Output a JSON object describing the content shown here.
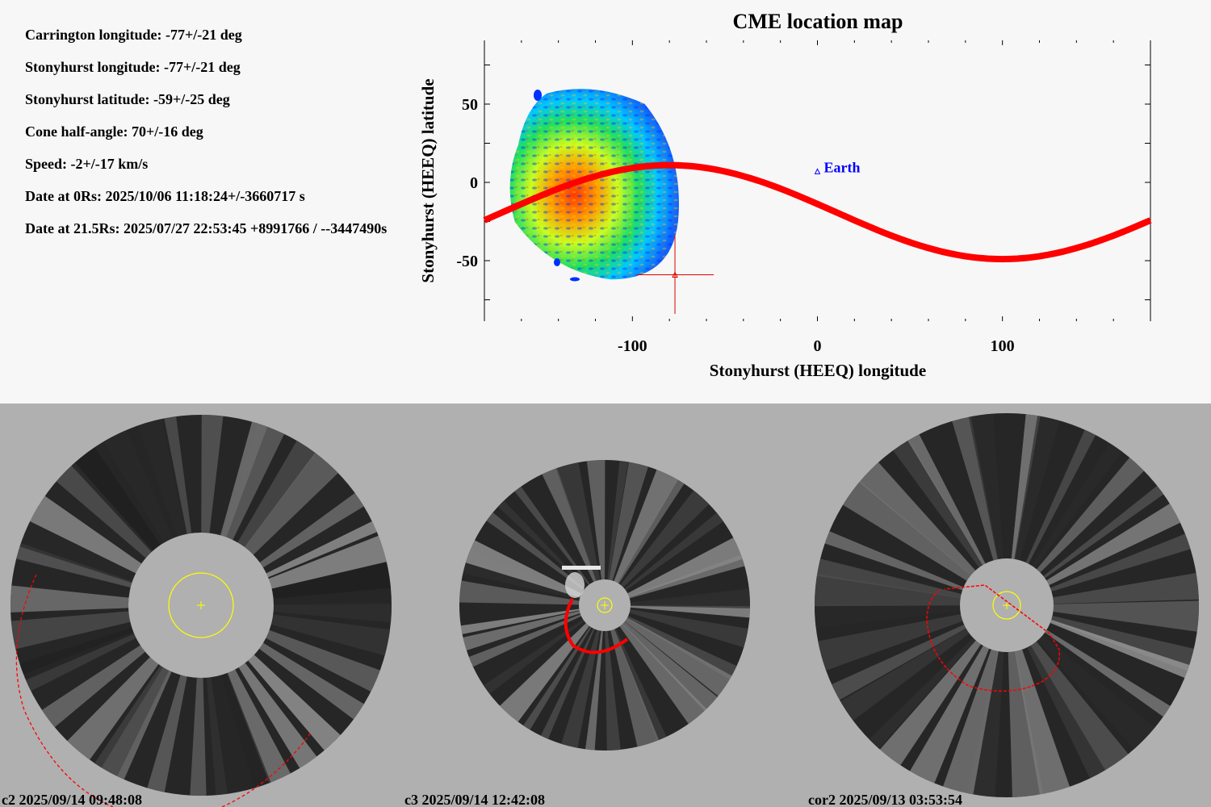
{
  "info": {
    "lines": [
      "Carrington longitude: -77+/-21 deg",
      "Stonyhurst longitude: -77+/-21 deg",
      "Stonyhurst latitude: -59+/-25 deg",
      "Cone half-angle: 70+/-16 deg",
      "Speed: -2+/-17 km/s",
      "Date at 0Rs: 2025/10/06 11:18:24+/-3660717 s",
      "Date at 21.5Rs: 2025/07/27 22:53:45 +8991766 / --3447490s"
    ]
  },
  "chart_data": {
    "type": "heatmap",
    "title": "CME location map",
    "xlabel": "Stonyhurst (HEEQ) longitude",
    "ylabel": "Stonyhurst (HEEQ) latitude",
    "xlim": [
      -180,
      180
    ],
    "ylim": [
      -90,
      90
    ],
    "xticks": [
      -100,
      0,
      100
    ],
    "yticks": [
      50,
      0,
      -50
    ],
    "grid": false,
    "heatmap_region": {
      "lon_range": [
        -167,
        -75
      ],
      "lat_range": [
        -62,
        63
      ],
      "colormap": "jet (blue low, red high)",
      "high_density_center": {
        "lon": -135,
        "lat": 5
      }
    },
    "curve": {
      "name": "reference sinusoid",
      "color": "#ff0000",
      "points": [
        {
          "lon": -180,
          "lat": -29
        },
        {
          "lon": -140,
          "lat": -10
        },
        {
          "lon": -100,
          "lat": 6
        },
        {
          "lon": -80,
          "lat": 11
        },
        {
          "lon": -40,
          "lat": 5
        },
        {
          "lon": 0,
          "lat": -13
        },
        {
          "lon": 40,
          "lat": -33
        },
        {
          "lon": 80,
          "lat": -47
        },
        {
          "lon": 100,
          "lat": -49
        },
        {
          "lon": 140,
          "lat": -43
        },
        {
          "lon": 180,
          "lat": -29
        }
      ]
    },
    "markers": [
      {
        "label": "Earth",
        "lon": 0,
        "lat": 7,
        "color": "#0000ff",
        "symbol": "triangle"
      },
      {
        "label": "",
        "lon": -77,
        "lat": -59,
        "err_lon": 21,
        "err_lat": 25,
        "color": "#dd0000",
        "symbol": "triangle-crosshair"
      }
    ]
  },
  "panels": [
    {
      "instrument": "c2",
      "caption": "c2 2025/09/14 09:48:08"
    },
    {
      "instrument": "c3",
      "caption": "c3 2025/09/14 12:42:08"
    },
    {
      "instrument": "cor2",
      "caption": "cor2 2025/09/13 03:53:54"
    }
  ]
}
